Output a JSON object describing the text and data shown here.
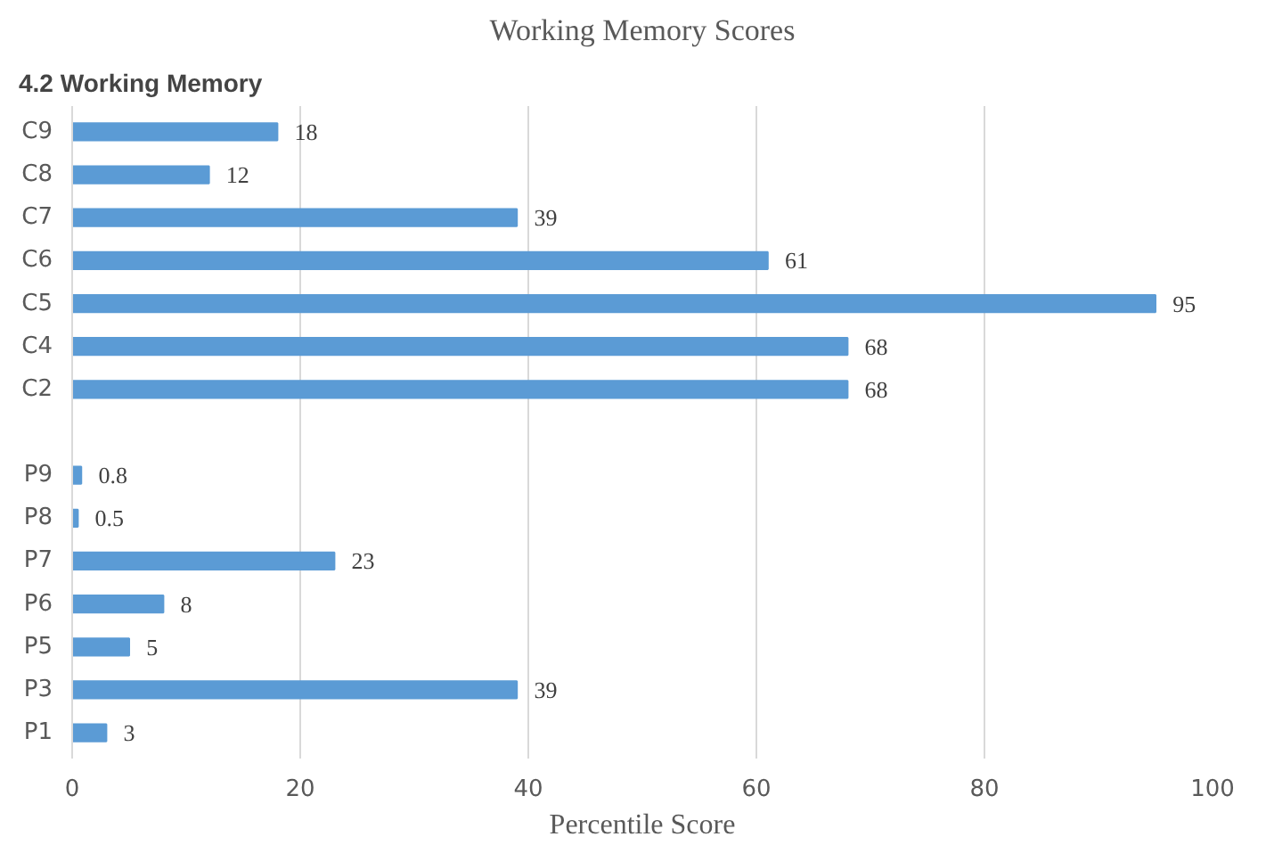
{
  "chart_data": {
    "type": "bar",
    "orientation": "horizontal",
    "title": "Working Memory Scores",
    "xlabel": "Percentile Score",
    "annotations": [
      "4.2      Working Memory"
    ],
    "categories": [
      "C9",
      "C8",
      "C7",
      "C6",
      "C5",
      "C4",
      "C2",
      null,
      "P9",
      "P8",
      "P7",
      "P6",
      "P5",
      "P3",
      "P1"
    ],
    "values": [
      18,
      12,
      39,
      61,
      95,
      68,
      68,
      null,
      0.8,
      0.5,
      23,
      8,
      5,
      39,
      3
    ],
    "color": "#5b9bd5",
    "data_labels": true,
    "xlim": [
      0,
      100
    ],
    "xticks": [
      0,
      20,
      40,
      60,
      80,
      100
    ],
    "grid": "x"
  }
}
